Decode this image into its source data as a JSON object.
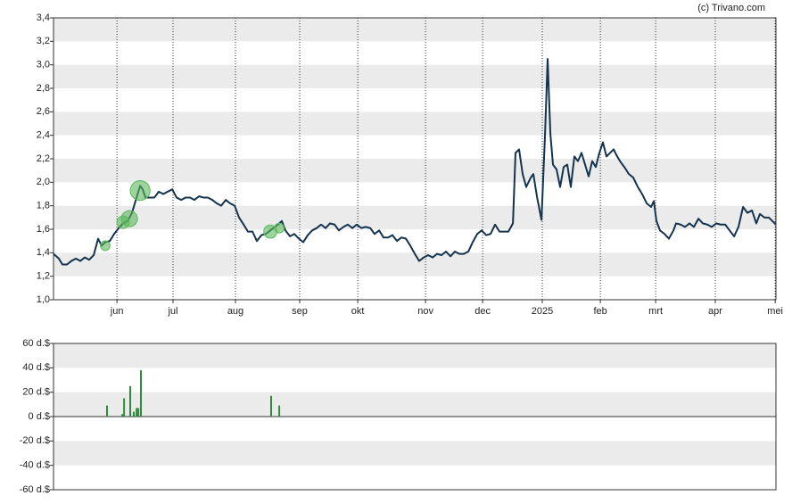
{
  "credit": "(c) Trivano.com",
  "chart_data": [
    {
      "type": "line",
      "color": "#14334f",
      "bands": true,
      "band_color": "#ebebeb",
      "grid_x": true,
      "xlim": [
        0,
        364.5
      ],
      "xticks": [
        {
          "value": 32,
          "label": "jun"
        },
        {
          "value": 60.3,
          "label": "jul"
        },
        {
          "value": 91.8,
          "label": "aug"
        },
        {
          "value": 124.2,
          "label": "sep"
        },
        {
          "value": 153.5,
          "label": "okt"
        },
        {
          "value": 187.7,
          "label": "nov"
        },
        {
          "value": 216.5,
          "label": "dec"
        },
        {
          "value": 246.6,
          "label": "2025"
        },
        {
          "value": 275.9,
          "label": "feb"
        },
        {
          "value": 303.8,
          "label": "mrt"
        },
        {
          "value": 333.9,
          "label": "apr"
        },
        {
          "value": 364.1,
          "label": "mei"
        }
      ],
      "ylim": [
        1.0,
        3.4
      ],
      "yticks": [
        {
          "value": 1.0,
          "label": "1,0"
        },
        {
          "value": 1.2,
          "label": "1,2"
        },
        {
          "value": 1.4,
          "label": "1,4"
        },
        {
          "value": 1.6,
          "label": "1,6"
        },
        {
          "value": 1.8,
          "label": "1,8"
        },
        {
          "value": 2.0,
          "label": "2,0"
        },
        {
          "value": 2.2,
          "label": "2,2"
        },
        {
          "value": 2.4,
          "label": "2,4"
        },
        {
          "value": 2.6,
          "label": "2,6"
        },
        {
          "value": 2.8,
          "label": "2,8"
        },
        {
          "value": 3.0,
          "label": "3,0"
        },
        {
          "value": 3.2,
          "label": "3,2"
        },
        {
          "value": 3.4,
          "label": "3,4"
        }
      ],
      "x": [
        0,
        2.7,
        4.5,
        6.8,
        9,
        11.3,
        13.5,
        15.8,
        18,
        20.3,
        22.5,
        24.3,
        26.1,
        28.4,
        30.6,
        32.9,
        35.1,
        37.4,
        39.6,
        41.9,
        43.7,
        45,
        46.4,
        48.6,
        50.9,
        53.1,
        55.4,
        57.6,
        59.9,
        62.1,
        64.4,
        66.6,
        68.9,
        71.1,
        73.4,
        75.6,
        77.9,
        80.1,
        82.4,
        84.6,
        86.9,
        89.1,
        91.4,
        93.6,
        95.9,
        98.1,
        100.4,
        102.6,
        104.9,
        107.1,
        109.4,
        111.6,
        113.9,
        115.2,
        117,
        119.3,
        121.5,
        123.8,
        126,
        128.3,
        130.5,
        132.8,
        135,
        137.3,
        139.5,
        141.8,
        144,
        146.3,
        148.5,
        150.8,
        153,
        155.3,
        157.5,
        159.8,
        162,
        164.3,
        166.5,
        168.8,
        171,
        173.3,
        175.5,
        177.8,
        180,
        182.3,
        184.5,
        186.8,
        189,
        191.3,
        193.5,
        195.8,
        198,
        200.3,
        202.5,
        204.8,
        207,
        209.3,
        211.5,
        213.8,
        216,
        218.3,
        220.5,
        222.8,
        225,
        227.3,
        229.5,
        231.8,
        233.1,
        234.9,
        236.7,
        238.5,
        240.8,
        242.1,
        243.9,
        246.2,
        248,
        249.3,
        250.7,
        252,
        253.8,
        255.6,
        257.4,
        259.2,
        261,
        262.8,
        264.6,
        266.4,
        268.2,
        270,
        271.8,
        273.6,
        275.4,
        277.2,
        279,
        280.8,
        282.6,
        284.4,
        286.2,
        288,
        290.3,
        292.5,
        294.8,
        297,
        299.3,
        301.5,
        302.9,
        304.2,
        306,
        308.3,
        310.5,
        312.8,
        314.1,
        316.4,
        318.6,
        320.9,
        323.1,
        325.4,
        327.6,
        329.9,
        332.1,
        334.4,
        336.6,
        338.9,
        341.1,
        343.4,
        345.6,
        347.9,
        350.1,
        352.4,
        354.6,
        356.4,
        358.7,
        360.9,
        362.7,
        364.5
      ],
      "values": [
        1.39,
        1.35,
        1.3,
        1.3,
        1.33,
        1.35,
        1.33,
        1.36,
        1.34,
        1.38,
        1.52,
        1.46,
        1.49,
        1.5,
        1.56,
        1.61,
        1.65,
        1.67,
        1.74,
        1.87,
        1.97,
        1.94,
        1.87,
        1.87,
        1.87,
        1.92,
        1.9,
        1.92,
        1.94,
        1.87,
        1.85,
        1.87,
        1.87,
        1.85,
        1.88,
        1.87,
        1.87,
        1.85,
        1.82,
        1.8,
        1.85,
        1.82,
        1.8,
        1.7,
        1.64,
        1.58,
        1.58,
        1.5,
        1.55,
        1.56,
        1.59,
        1.62,
        1.65,
        1.67,
        1.59,
        1.54,
        1.56,
        1.52,
        1.49,
        1.55,
        1.59,
        1.61,
        1.64,
        1.61,
        1.65,
        1.64,
        1.59,
        1.62,
        1.64,
        1.61,
        1.64,
        1.61,
        1.62,
        1.61,
        1.56,
        1.59,
        1.53,
        1.53,
        1.55,
        1.5,
        1.53,
        1.52,
        1.46,
        1.39,
        1.33,
        1.36,
        1.38,
        1.36,
        1.39,
        1.38,
        1.41,
        1.37,
        1.41,
        1.39,
        1.39,
        1.41,
        1.49,
        1.56,
        1.59,
        1.55,
        1.56,
        1.64,
        1.58,
        1.58,
        1.58,
        1.65,
        2.25,
        2.28,
        2.07,
        1.96,
        2.04,
        2.07,
        1.88,
        1.68,
        2.41,
        3.05,
        2.41,
        2.15,
        2.11,
        1.96,
        2.13,
        2.15,
        1.96,
        2.22,
        2.18,
        2.25,
        2.15,
        2.05,
        2.18,
        2.13,
        2.25,
        2.34,
        2.22,
        2.25,
        2.28,
        2.22,
        2.17,
        2.13,
        2.07,
        2.04,
        1.96,
        1.9,
        1.82,
        1.79,
        1.84,
        1.67,
        1.59,
        1.56,
        1.52,
        1.59,
        1.65,
        1.64,
        1.62,
        1.65,
        1.62,
        1.69,
        1.65,
        1.64,
        1.62,
        1.65,
        1.64,
        1.64,
        1.59,
        1.54,
        1.62,
        1.79,
        1.74,
        1.76,
        1.65,
        1.73,
        1.7,
        1.7,
        1.67,
        1.64
      ],
      "bubbles": {
        "color": "#5cb85c",
        "x": [
          43.7,
          38.3,
          35.1,
          26.1,
          109.4,
          113.9
        ],
        "values": [
          1.93,
          1.69,
          1.66,
          1.46,
          1.58,
          1.61
        ],
        "sizes": [
          38,
          25,
          15,
          9,
          17,
          9
        ]
      }
    },
    {
      "type": "bar",
      "color": "#2e8b3a",
      "bands": true,
      "band_color": "#ebebeb",
      "xlim": [
        0,
        364.5
      ],
      "ylim": [
        -60,
        60
      ],
      "yticks": [
        {
          "value": -60,
          "label": "-60 d.$"
        },
        {
          "value": -40,
          "label": "-40 d.$"
        },
        {
          "value": -20,
          "label": "-20 d.$"
        },
        {
          "value": 0,
          "label": "0 d.$"
        },
        {
          "value": 20,
          "label": "20 d.$"
        },
        {
          "value": 40,
          "label": "40 d.$"
        },
        {
          "value": 60,
          "label": "60 d.$"
        }
      ],
      "x": [
        27,
        34.7,
        35.6,
        38.7,
        40.5,
        41.9,
        42.8,
        44.1,
        109.8,
        113.9
      ],
      "values": [
        9,
        2,
        15,
        25,
        4,
        7,
        7,
        38,
        17,
        9
      ]
    }
  ]
}
